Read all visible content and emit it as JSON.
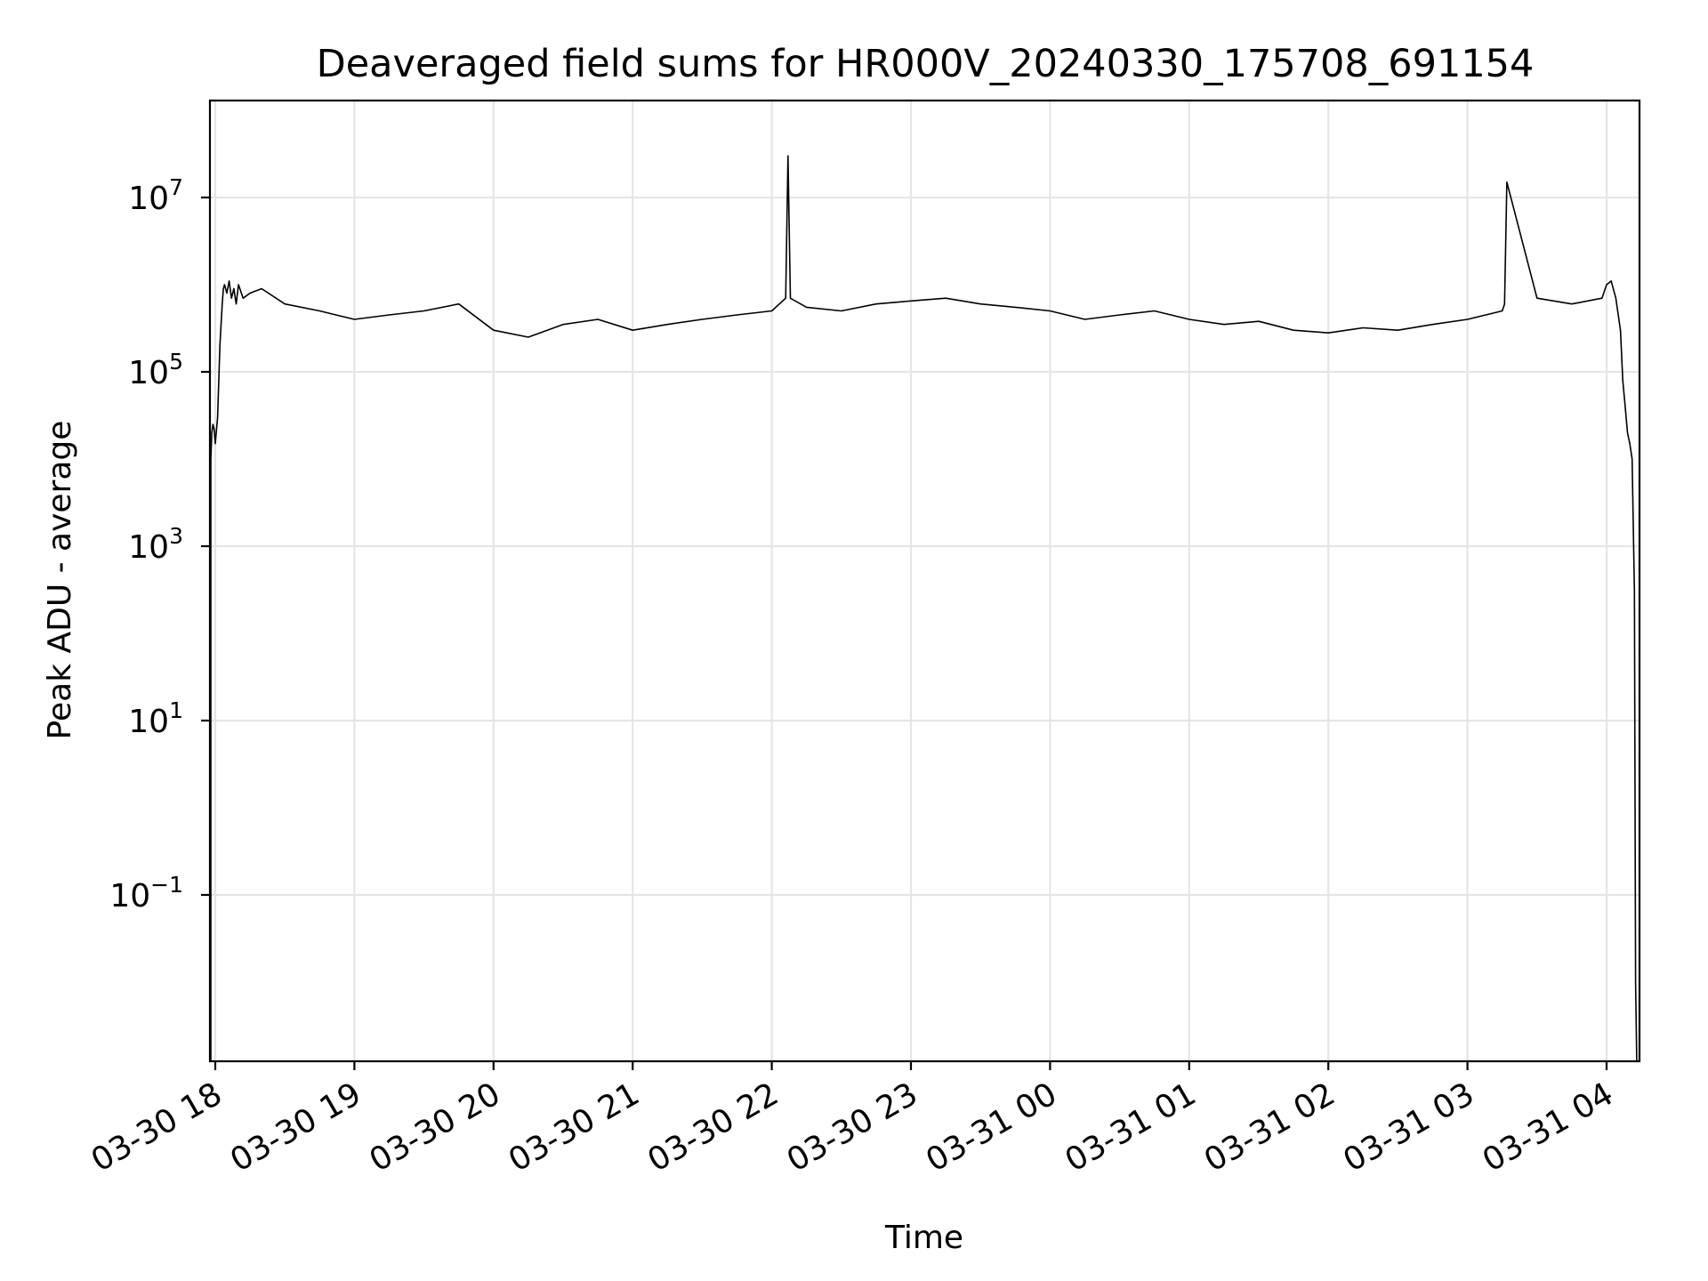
{
  "chart_data": {
    "type": "line",
    "title": "Deaveraged field sums for HR000V_20240330_175708_691154",
    "xlabel": "Time",
    "ylabel": "Peak ADU - average",
    "yscale": "log",
    "grid": true,
    "legend": "none",
    "line_color": "#000000",
    "xlim": [
      "2024-03-30 17:57",
      "2024-03-31 04:14"
    ],
    "ylim": [
      0.001,
      120000000
    ],
    "x_ticks": [
      "03-30 18",
      "03-30 19",
      "03-30 20",
      "03-30 21",
      "03-30 22",
      "03-30 23",
      "03-31 00",
      "03-31 01",
      "03-31 02",
      "03-31 03",
      "03-31 04"
    ],
    "y_ticks": [
      {
        "base": "10",
        "exp": "7",
        "value": 10000000
      },
      {
        "base": "10",
        "exp": "5",
        "value": 100000
      },
      {
        "base": "10",
        "exp": "3",
        "value": 1000
      },
      {
        "base": "10",
        "exp": "1",
        "value": 10
      },
      {
        "base": "10",
        "exp": "−1",
        "value": 0.1
      }
    ],
    "series": [
      {
        "x": [
          "2024-03-30 17:57:08",
          "2024-03-30 17:57:30",
          "2024-03-30 17:58:00",
          "2024-03-30 17:58:30",
          "2024-03-30 17:59:00",
          "2024-03-30 17:59:30",
          "2024-03-30 18:00:00",
          "2024-03-30 18:01:00",
          "2024-03-30 18:02:00",
          "2024-03-30 18:03:00",
          "2024-03-30 18:03:30",
          "2024-03-30 18:04:00",
          "2024-03-30 18:05:00",
          "2024-03-30 18:06:00",
          "2024-03-30 18:07:00",
          "2024-03-30 18:08:00",
          "2024-03-30 18:09:00",
          "2024-03-30 18:10:00",
          "2024-03-30 18:12:00",
          "2024-03-30 18:15:00",
          "2024-03-30 18:20:00",
          "2024-03-30 18:30:00",
          "2024-03-30 18:45:00",
          "2024-03-30 19:00:00",
          "2024-03-30 19:15:00",
          "2024-03-30 19:30:00",
          "2024-03-30 19:45:00",
          "2024-03-30 20:00:00",
          "2024-03-30 20:15:00",
          "2024-03-30 20:30:00",
          "2024-03-30 20:45:00",
          "2024-03-30 21:00:00",
          "2024-03-30 21:15:00",
          "2024-03-30 21:30:00",
          "2024-03-30 21:45:00",
          "2024-03-30 22:00:00",
          "2024-03-30 22:06:00",
          "2024-03-30 22:07:00",
          "2024-03-30 22:08:00",
          "2024-03-30 22:15:00",
          "2024-03-30 22:30:00",
          "2024-03-30 22:45:00",
          "2024-03-30 23:00:00",
          "2024-03-30 23:15:00",
          "2024-03-30 23:30:00",
          "2024-03-30 23:45:00",
          "2024-03-31 00:00:00",
          "2024-03-31 00:15:00",
          "2024-03-31 00:30:00",
          "2024-03-31 00:45:00",
          "2024-03-31 01:00:00",
          "2024-03-31 01:15:00",
          "2024-03-31 01:30:00",
          "2024-03-31 01:45:00",
          "2024-03-31 02:00:00",
          "2024-03-31 02:15:00",
          "2024-03-31 02:30:00",
          "2024-03-31 02:45:00",
          "2024-03-31 03:00:00",
          "2024-03-31 03:15:00",
          "2024-03-31 03:16:00",
          "2024-03-31 03:17:00",
          "2024-03-31 03:30:00",
          "2024-03-31 03:45:00",
          "2024-03-31 03:58:00",
          "2024-03-31 04:00:00",
          "2024-03-31 04:02:00",
          "2024-03-31 04:04:00",
          "2024-03-31 04:06:00",
          "2024-03-31 04:07:00",
          "2024-03-31 04:08:00",
          "2024-03-31 04:09:00",
          "2024-03-31 04:10:00",
          "2024-03-31 04:11:00",
          "2024-03-31 04:12:00",
          "2024-03-31 04:12:30",
          "2024-03-31 04:13:00"
        ],
        "y": [
          0.001,
          5000,
          10000,
          20000,
          25000,
          22000,
          15000,
          30000,
          200000,
          600000,
          900000,
          1000000,
          800000,
          1100000,
          700000,
          900000,
          600000,
          1000000,
          700000,
          800000,
          900000,
          600000,
          500000,
          400000,
          450000,
          500000,
          600000,
          300000,
          250000,
          350000,
          400000,
          300000,
          350000,
          400000,
          450000,
          500000,
          700000,
          30000000,
          700000,
          550000,
          500000,
          600000,
          650000,
          700000,
          600000,
          550000,
          500000,
          400000,
          450000,
          500000,
          400000,
          350000,
          380000,
          300000,
          280000,
          320000,
          300000,
          350000,
          400000,
          500000,
          600000,
          15000000,
          700000,
          600000,
          700000,
          1000000,
          1100000,
          700000,
          300000,
          80000,
          40000,
          20000,
          15000,
          10000,
          300,
          0.01,
          0.001
        ]
      }
    ]
  }
}
